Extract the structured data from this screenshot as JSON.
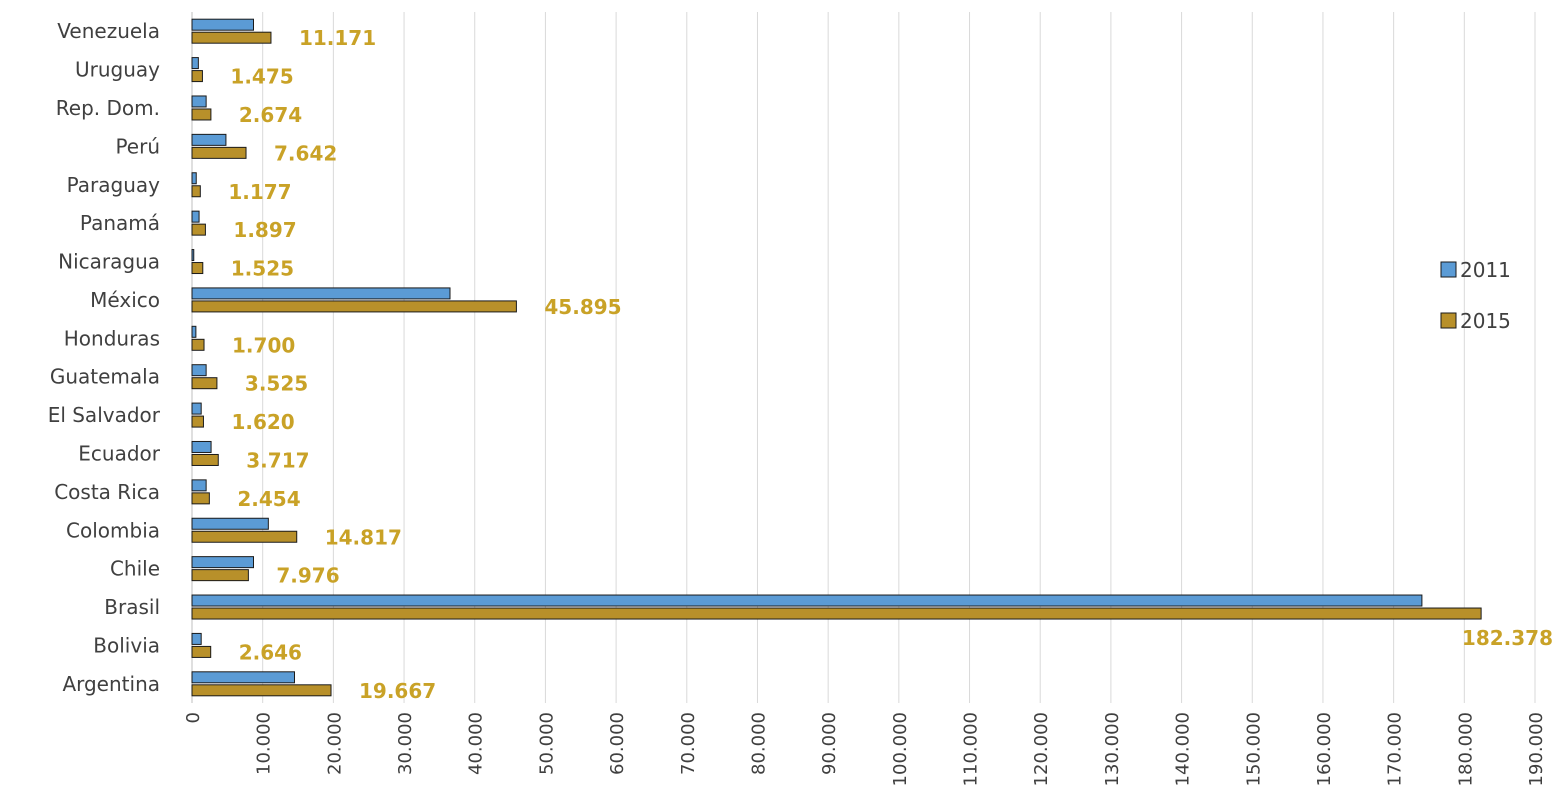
{
  "chart_data": {
    "type": "bar",
    "orientation": "horizontal",
    "categories": [
      "Venezuela",
      "Uruguay",
      "Rep. Dom.",
      "Perú",
      "Paraguay",
      "Panamá",
      "Nicaragua",
      "México",
      "Honduras",
      "Guatemala",
      "El Salvador",
      "Ecuador",
      "Costa Rica",
      "Colombia",
      "Chile",
      "Brasil",
      "Bolivia",
      "Argentina"
    ],
    "series": [
      {
        "name": "2011",
        "color": "#5b9bd5",
        "values": [
          8700,
          900,
          2000,
          4800,
          600,
          1000,
          250,
          36500,
          550,
          2000,
          1300,
          2700,
          2000,
          10800,
          8700,
          174000,
          1300,
          14500
        ],
        "labels": [
          "",
          "",
          "",
          "",
          "",
          "",
          "",
          "",
          "",
          "",
          "",
          "",
          "",
          "",
          "",
          "",
          "",
          ""
        ]
      },
      {
        "name": "2015",
        "color": "#b8902a",
        "values": [
          11171,
          1475,
          2674,
          7642,
          1177,
          1897,
          1525,
          45895,
          1700,
          3525,
          1620,
          3717,
          2454,
          14817,
          7976,
          182378,
          2646,
          19667
        ],
        "labels": [
          "11.171",
          "1.475",
          "2.674",
          "7.642",
          "1.177",
          "1.897",
          "1.525",
          "45.895",
          "1.700",
          "3.525",
          "1.620",
          "3.717",
          "2.454",
          "14.817",
          "7.976",
          "182.378",
          "2.646",
          "19.667"
        ]
      }
    ],
    "xlim": [
      0,
      190000
    ],
    "ticks": [
      0,
      10000,
      20000,
      30000,
      40000,
      50000,
      60000,
      70000,
      80000,
      90000,
      100000,
      110000,
      120000,
      130000,
      140000,
      150000,
      160000,
      170000,
      180000,
      190000
    ],
    "tick_labels": [
      "0",
      "10.000",
      "20.000",
      "30.000",
      "40.000",
      "50.000",
      "60.000",
      "70.000",
      "80.000",
      "90.000",
      "100.000",
      "110.000",
      "120.000",
      "130.000",
      "140.000",
      "150.000",
      "160.000",
      "170.000",
      "180.000",
      "190.000"
    ],
    "grid": true,
    "legend_position": "right",
    "label_color": "#c9a227"
  }
}
